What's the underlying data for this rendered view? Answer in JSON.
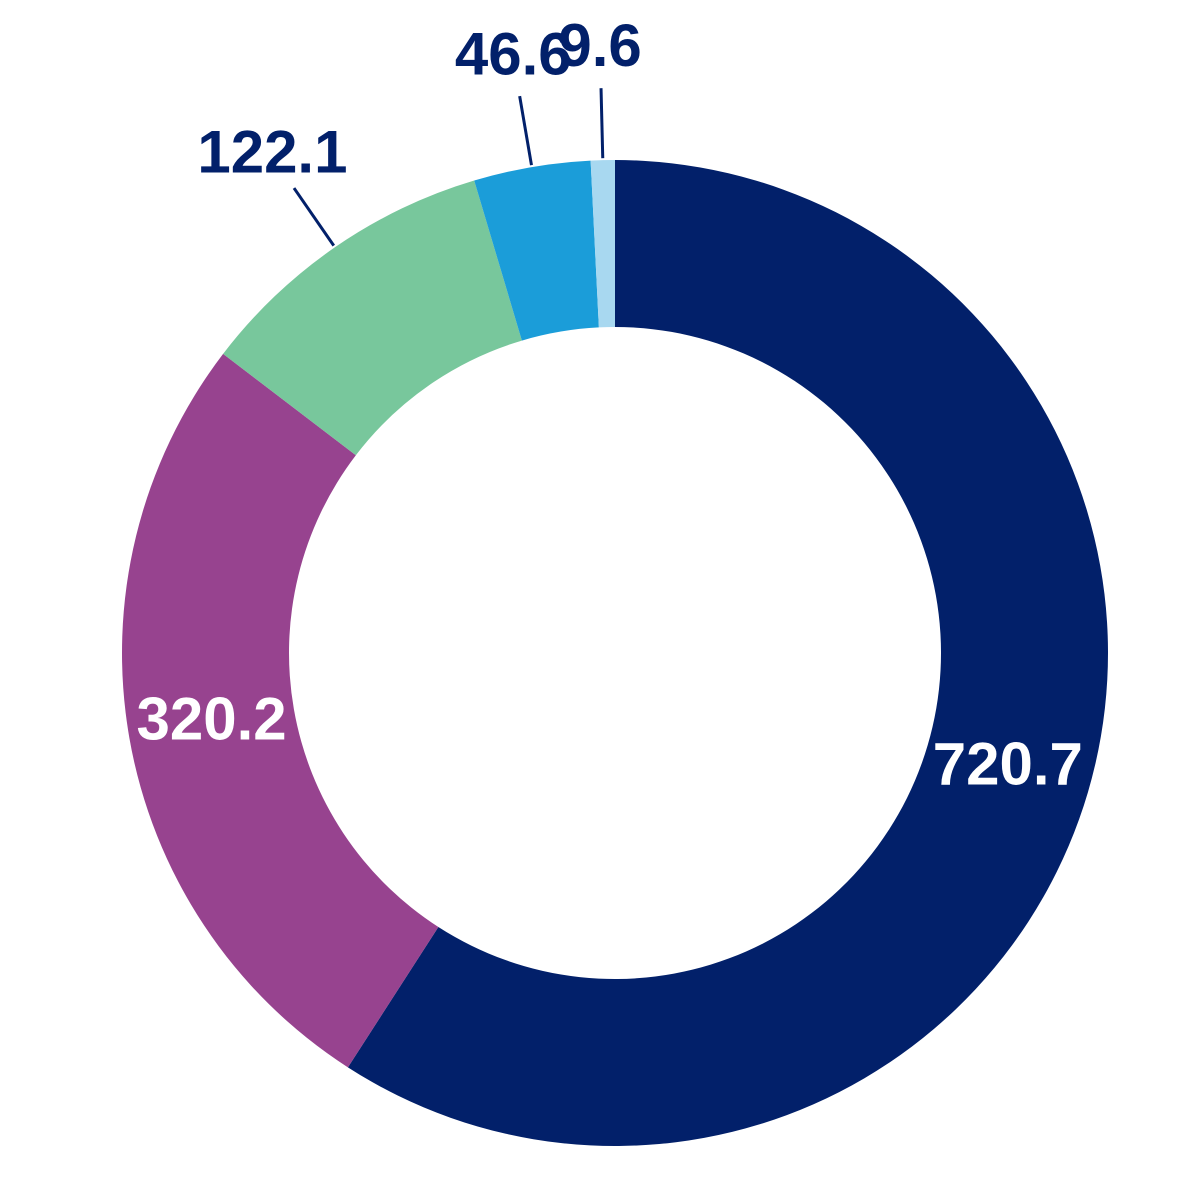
{
  "chart_data": {
    "type": "donut",
    "values": [
      720.7,
      320.2,
      122.1,
      46.6,
      9.6
    ],
    "colors": [
      "#02206a",
      "#97438f",
      "#78c79c",
      "#1b9dd9",
      "#a8d8f0"
    ],
    "label_color": "#02206a"
  }
}
